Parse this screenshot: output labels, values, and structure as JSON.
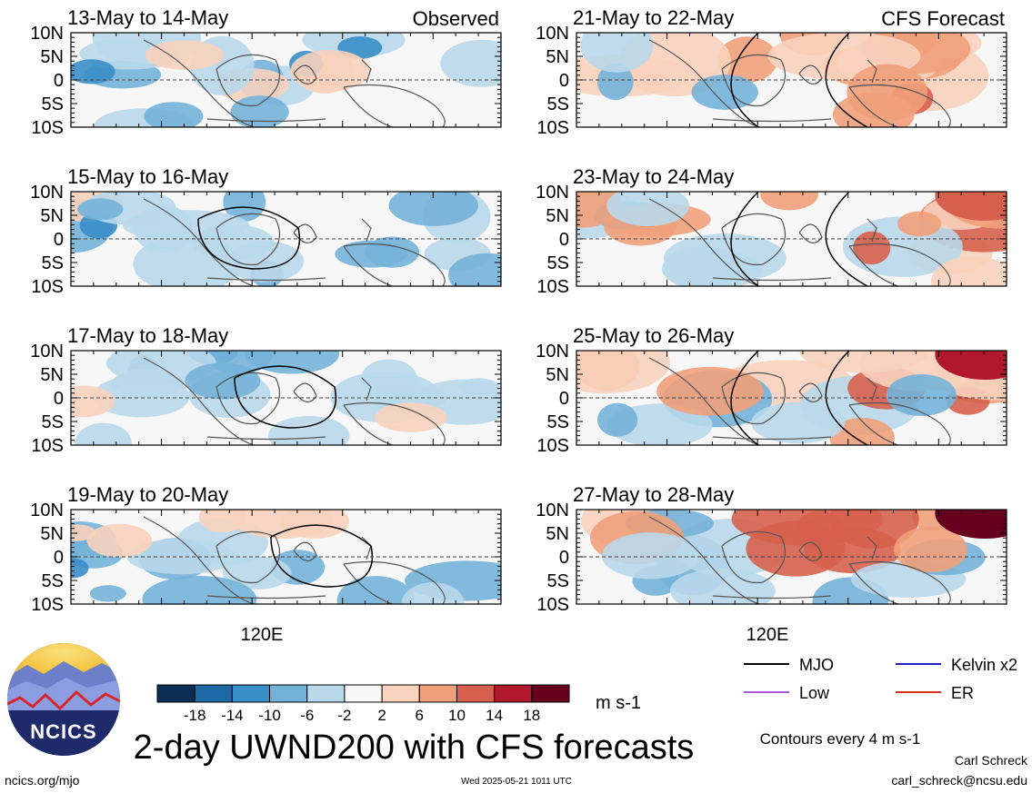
{
  "chart_data": {
    "type": "heatmap",
    "title": "2-day UWND200 with CFS forecasts",
    "variable": "UWND200",
    "units": "m s-1",
    "region": {
      "lat_range": [
        "10S",
        "10N"
      ],
      "lon_center_label": "120E"
    },
    "y_tick_labels": [
      "10N",
      "5N",
      "0",
      "5S",
      "10S"
    ],
    "x_tick_labels": [
      "120E"
    ],
    "colorbar": {
      "levels": [
        "-18",
        "-14",
        "-10",
        "-6",
        "-2",
        "2",
        "6",
        "10",
        "14",
        "18"
      ],
      "colors": [
        "#0b2e57",
        "#1f6aa6",
        "#3a8ec8",
        "#74b2d9",
        "#b9d8ea",
        "#f7f7f7",
        "#f8d2bd",
        "#efa07a",
        "#d6604d",
        "#b2182b",
        "#67001f"
      ]
    },
    "contour_interval_note": "Contours every 4 m s-1",
    "legend": [
      {
        "label": "MJO",
        "color": "#000000"
      },
      {
        "label": "Kelvin x2",
        "color": "#1f1fd0"
      },
      {
        "label": "Low",
        "color": "#a15cd8"
      },
      {
        "label": "ER",
        "color": "#d83020"
      }
    ],
    "panels": [
      {
        "title": "13-May to 14-May",
        "tag": "Observed",
        "column": "observed",
        "mean_anomaly_pattern": "weak easterly north, mixed near equator",
        "mjo_contour": false
      },
      {
        "title": "15-May to 16-May",
        "tag": "",
        "column": "observed",
        "mean_anomaly_pattern": "easterly east and south",
        "mjo_contour": true
      },
      {
        "title": "17-May to 18-May",
        "tag": "",
        "column": "observed",
        "mean_anomaly_pattern": "easterly widespread",
        "mjo_contour": true
      },
      {
        "title": "19-May to 20-May",
        "tag": "",
        "column": "observed",
        "mean_anomaly_pattern": "easterly widespread, westerly north",
        "mjo_contour": true
      },
      {
        "title": "21-May to 22-May",
        "tag": "CFS Forecast",
        "column": "forecast",
        "mean_anomaly_pattern": "westerly north-east, easterly south",
        "mjo_contour": true
      },
      {
        "title": "23-May to 24-May",
        "tag": "",
        "column": "forecast",
        "mean_anomaly_pattern": "strong westerly north-east",
        "mjo_contour": true
      },
      {
        "title": "25-May to 26-May",
        "tag": "",
        "column": "forecast",
        "mean_anomaly_pattern": "strong westerly north-east",
        "mjo_contour": true
      },
      {
        "title": "27-May to 28-May",
        "tag": "",
        "column": "forecast",
        "mean_anomaly_pattern": "strong westerly north-east",
        "mjo_contour": false
      }
    ]
  },
  "logo": {
    "text": "NCICS"
  },
  "footer": {
    "left_url": "ncics.org/mjo",
    "timestamp": "Wed 2025-05-21 1011 UTC",
    "author": "Carl Schreck",
    "email": "carl_schreck@ncsu.edu"
  }
}
